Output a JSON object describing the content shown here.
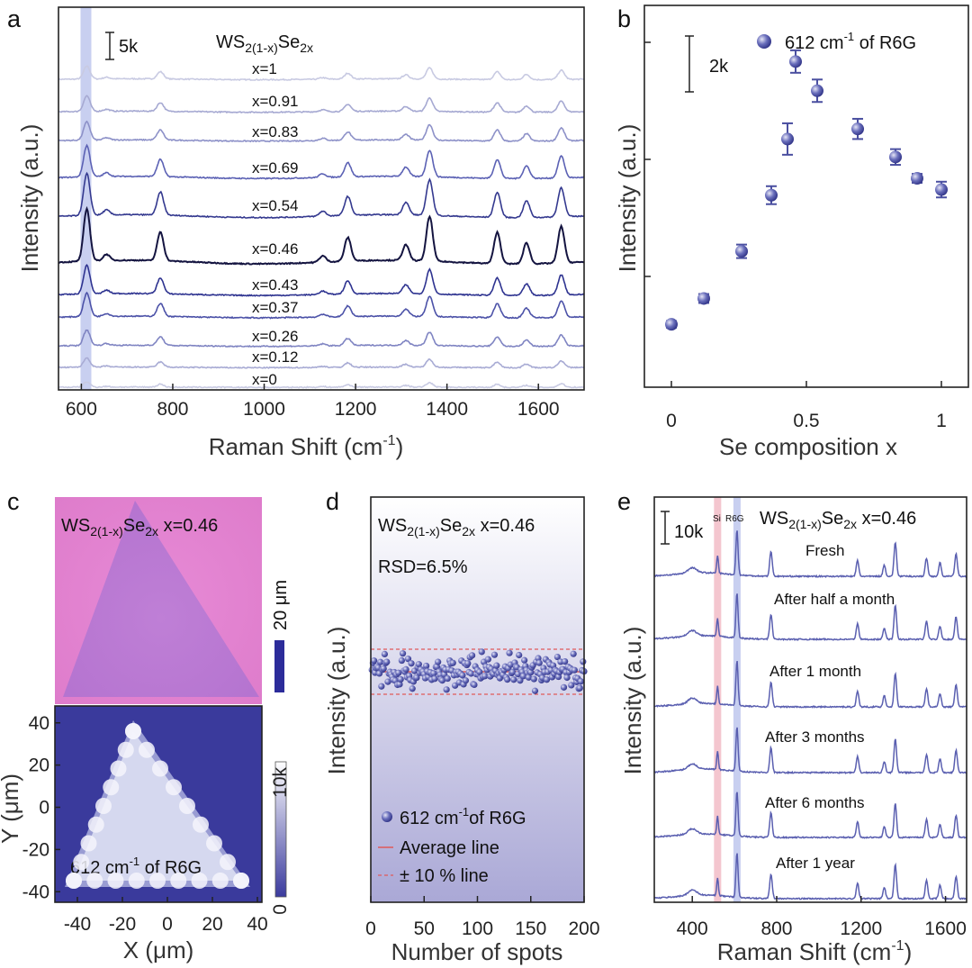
{
  "panel_letters": [
    "a",
    "b",
    "c",
    "d",
    "e"
  ],
  "colors": {
    "dark_series": "#141440",
    "mid_series": "#4a50a8",
    "light_series": "#b8bad8",
    "marker": "#5a5fb0",
    "red_line": "#e05a5a",
    "highlight_blue": "#c8cff0",
    "highlight_pink": "#f4c6cf",
    "map_bg": "#3a3a9c",
    "optical_bg": "#e27fd0"
  },
  "chart_data": [
    {
      "panel": "a",
      "type": "line",
      "xlabel": "Raman Shift (cm",
      "xlabel_sup": "-1",
      "xlabel_end": ")",
      "ylabel": "Intensity (a.u.)",
      "xlim": [
        550,
        1700
      ],
      "xticks": [
        600,
        800,
        1000,
        1200,
        1400,
        1600
      ],
      "scale_bar": "5k",
      "composition_label": {
        "base": "WS",
        "sub1": "2(1-x)",
        "mid": "Se",
        "sub2": "2x"
      },
      "highlight_x": 610,
      "peaks": [
        {
          "x": 612,
          "h": 1.0
        },
        {
          "x": 655,
          "h": 0.12
        },
        {
          "x": 773,
          "h": 0.55
        },
        {
          "x": 1128,
          "h": 0.12
        },
        {
          "x": 1183,
          "h": 0.45
        },
        {
          "x": 1310,
          "h": 0.3
        },
        {
          "x": 1362,
          "h": 0.85
        },
        {
          "x": 1510,
          "h": 0.6
        },
        {
          "x": 1574,
          "h": 0.4
        },
        {
          "x": 1650,
          "h": 0.7
        }
      ],
      "series": [
        {
          "name": "x=1",
          "scale": 0.25,
          "color": "#c8cae2"
        },
        {
          "name": "x=0.91",
          "scale": 0.3,
          "color": "#a6a9d2"
        },
        {
          "name": "x=0.83",
          "scale": 0.35,
          "color": "#8d91c8"
        },
        {
          "name": "x=0.69",
          "scale": 0.6,
          "color": "#5b61b4"
        },
        {
          "name": "x=0.54",
          "scale": 0.8,
          "color": "#34398f"
        },
        {
          "name": "x=0.46",
          "scale": 1.0,
          "color": "#141440"
        },
        {
          "name": "x=0.43",
          "scale": 0.55,
          "color": "#2e3390"
        },
        {
          "name": "x=0.37",
          "scale": 0.45,
          "color": "#4c52a8"
        },
        {
          "name": "x=0.26",
          "scale": 0.3,
          "color": "#7f84c2"
        },
        {
          "name": "x=0.12",
          "scale": 0.18,
          "color": "#a8abd4"
        },
        {
          "name": "x=0",
          "scale": 0.1,
          "color": "#c8cae2"
        }
      ]
    },
    {
      "panel": "b",
      "type": "scatter",
      "xlabel": "Se composition x",
      "ylabel": "Intensity (a.u.)",
      "xlim": [
        -0.1,
        1.1
      ],
      "xticks": [
        0,
        0.5,
        1
      ],
      "xtick_labels": [
        "0",
        "0.5",
        "1"
      ],
      "scale_bar": "2k",
      "legend": {
        "value": "612 cm",
        "sup": "-1",
        "rest": " of R6G"
      },
      "points": [
        {
          "x": 0.0,
          "y": 0.8,
          "err": 0.15
        },
        {
          "x": 0.12,
          "y": 1.95,
          "err": 0.2
        },
        {
          "x": 0.26,
          "y": 4.05,
          "err": 0.3
        },
        {
          "x": 0.37,
          "y": 6.55,
          "err": 0.4
        },
        {
          "x": 0.43,
          "y": 9.05,
          "err": 0.7
        },
        {
          "x": 0.46,
          "y": 12.5,
          "err": 0.5
        },
        {
          "x": 0.54,
          "y": 11.2,
          "err": 0.5
        },
        {
          "x": 0.69,
          "y": 9.5,
          "err": 0.45
        },
        {
          "x": 0.83,
          "y": 8.25,
          "err": 0.35
        },
        {
          "x": 0.91,
          "y": 7.3,
          "err": 0.2
        },
        {
          "x": 1.0,
          "y": 6.8,
          "err": 0.35
        }
      ],
      "ylim": [
        -2,
        15
      ]
    },
    {
      "panel": "c",
      "type": "heatmap",
      "label_top": {
        "base": "WS",
        "sub1": "2(1-x)",
        "mid": "Se",
        "sub2": "2x",
        "rest": " x=0.46"
      },
      "scale_bar": "20 μm",
      "map_label": {
        "value": "612 cm",
        "sup": "-1",
        "rest": " of R6G"
      },
      "colorbar": {
        "max": "10k",
        "min": "0"
      },
      "xlabel": "X (μm)",
      "ylabel": "Y (μm)",
      "xticks": [
        -40,
        -20,
        0,
        20,
        40
      ],
      "yticks": [
        40,
        20,
        0,
        -20,
        -40
      ],
      "xlim": [
        -50,
        42
      ],
      "ylim": [
        -45,
        48
      ]
    },
    {
      "panel": "d",
      "type": "scatter",
      "label_top": {
        "base": "WS",
        "sub1": "2(1-x)",
        "mid": "Se",
        "sub2": "2x",
        "rest": " x=0.46"
      },
      "rsd": "RSD=6.5%",
      "xlabel": "Number of spots",
      "ylabel": "Intensity (a.u.)",
      "xlim": [
        0,
        200
      ],
      "xticks": [
        0,
        50,
        100,
        150,
        200
      ],
      "average": 1.0,
      "band": 0.1,
      "n_points": 200,
      "legend": [
        {
          "value": "612 cm",
          "sup": "-1",
          "rest": "of R6G"
        },
        {
          "value": "Average line"
        },
        {
          "value": "± 10 % line"
        }
      ]
    },
    {
      "panel": "e",
      "type": "line",
      "xlabel": "Raman Shift (cm",
      "xlabel_sup": "-1",
      "xlabel_end": ")",
      "ylabel": "Intensity (a.u.)",
      "xlim": [
        220,
        1700
      ],
      "xticks": [
        400,
        800,
        1200,
        1600
      ],
      "scale_bar": "10k",
      "band_labels": [
        "Si",
        "R6G"
      ],
      "band_positions": [
        520,
        612
      ],
      "label_top": {
        "base": "WS",
        "sub1": "2(1-x)",
        "mid": "Se",
        "sub2": "2x",
        "rest": " x=0.46"
      },
      "series": [
        {
          "name": "Fresh"
        },
        {
          "name": "After half a month"
        },
        {
          "name": "After 1 month"
        },
        {
          "name": "After 3 months"
        },
        {
          "name": "After 6 months"
        },
        {
          "name": "After 1 year"
        }
      ]
    }
  ]
}
